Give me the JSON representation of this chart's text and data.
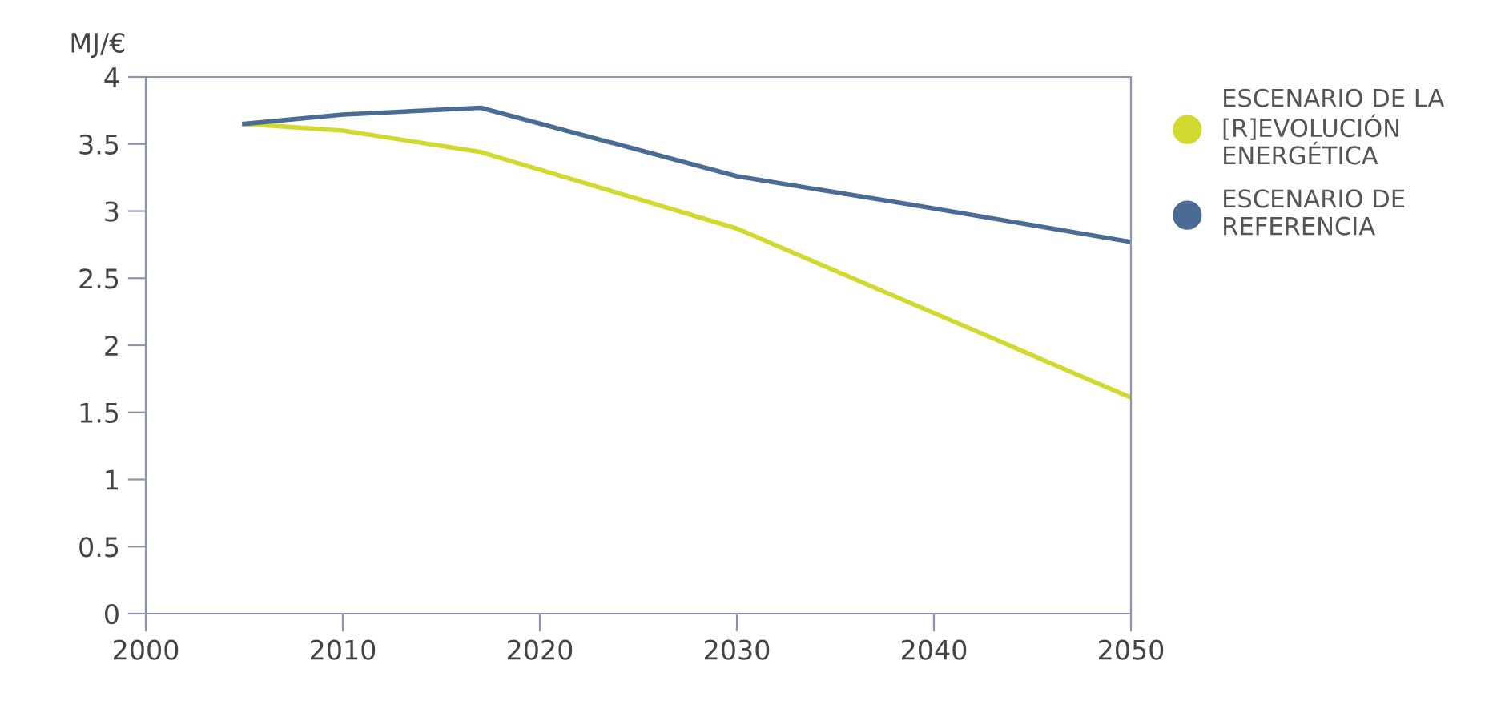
{
  "chart_data": {
    "type": "line",
    "ylabel": "MJ/€",
    "xlim": [
      2000,
      2050
    ],
    "xticks": [
      2000,
      2010,
      2020,
      2030,
      2040,
      2050
    ],
    "ylim": [
      0,
      4
    ],
    "yticks": [
      0,
      0.5,
      1,
      1.5,
      2,
      2.5,
      3,
      3.5,
      4
    ],
    "grid": false,
    "legend": "right",
    "marker": "none",
    "line_style": "solid",
    "series": [
      {
        "name": "ESCENARIO DE LA\n[R]EVOLUCIÓN\nENERGÉTICA",
        "color": "#d2d92e",
        "x": [
          2005,
          2010,
          2017,
          2030,
          2040,
          2050
        ],
        "values": [
          3.65,
          3.6,
          3.44,
          2.87,
          2.24,
          1.61
        ]
      },
      {
        "name": "ESCENARIO DE\nREFERENCIA",
        "color": "#4a6b94",
        "x": [
          2005,
          2010,
          2017,
          2030,
          2040,
          2050
        ],
        "values": [
          3.65,
          3.72,
          3.77,
          3.26,
          3.02,
          2.77
        ]
      }
    ]
  }
}
